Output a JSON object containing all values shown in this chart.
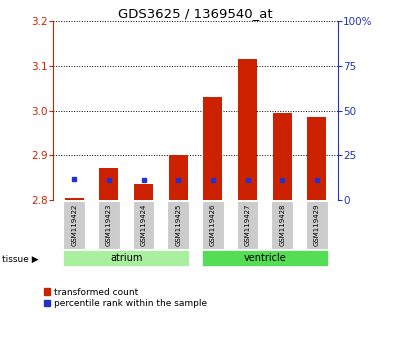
{
  "title": "GDS3625 / 1369540_at",
  "samples": [
    "GSM119422",
    "GSM119423",
    "GSM119424",
    "GSM119425",
    "GSM119426",
    "GSM119427",
    "GSM119428",
    "GSM119429"
  ],
  "ylim_left": [
    2.8,
    3.2
  ],
  "ylim_right": [
    0,
    100
  ],
  "yticks_left": [
    2.8,
    2.9,
    3.0,
    3.1,
    3.2
  ],
  "yticks_right": [
    0,
    25,
    50,
    75,
    100
  ],
  "ytick_labels_right": [
    "0",
    "25",
    "50",
    "75",
    "100%"
  ],
  "baseline": 2.8,
  "red_bar_tops": [
    2.804,
    2.872,
    2.836,
    2.9,
    3.03,
    3.115,
    2.995,
    2.985
  ],
  "blue_square_y": [
    2.848,
    2.845,
    2.845,
    2.845,
    2.845,
    2.845,
    2.845,
    2.845
  ],
  "bar_color": "#CC2200",
  "blue_color": "#2233CC",
  "bar_width": 0.55,
  "bg_label": "#CCCCCC",
  "left_axis_color": "#CC2200",
  "right_axis_color": "#2233BB",
  "legend_red_label": "transformed count",
  "legend_blue_label": "percentile rank within the sample",
  "tissue_arrow_label": "tissue",
  "atrium_color": "#AAEEA0",
  "ventricle_color": "#55DD55",
  "groups": [
    {
      "label": "atrium",
      "indices": [
        0,
        1,
        2,
        3
      ]
    },
    {
      "label": "ventricle",
      "indices": [
        4,
        5,
        6,
        7
      ]
    }
  ]
}
